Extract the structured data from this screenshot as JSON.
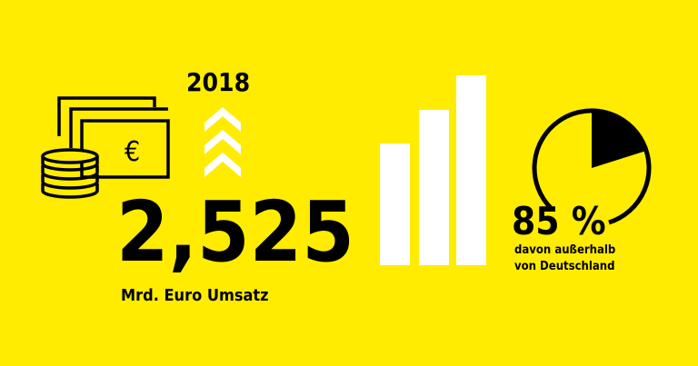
{
  "headline": {
    "year": "2018",
    "value": "2,525",
    "caption": "Mrd. Euro Umsatz"
  },
  "share": {
    "value": "85 %",
    "line1": "davon außerhalb",
    "line2": "von Deutschland"
  }
}
